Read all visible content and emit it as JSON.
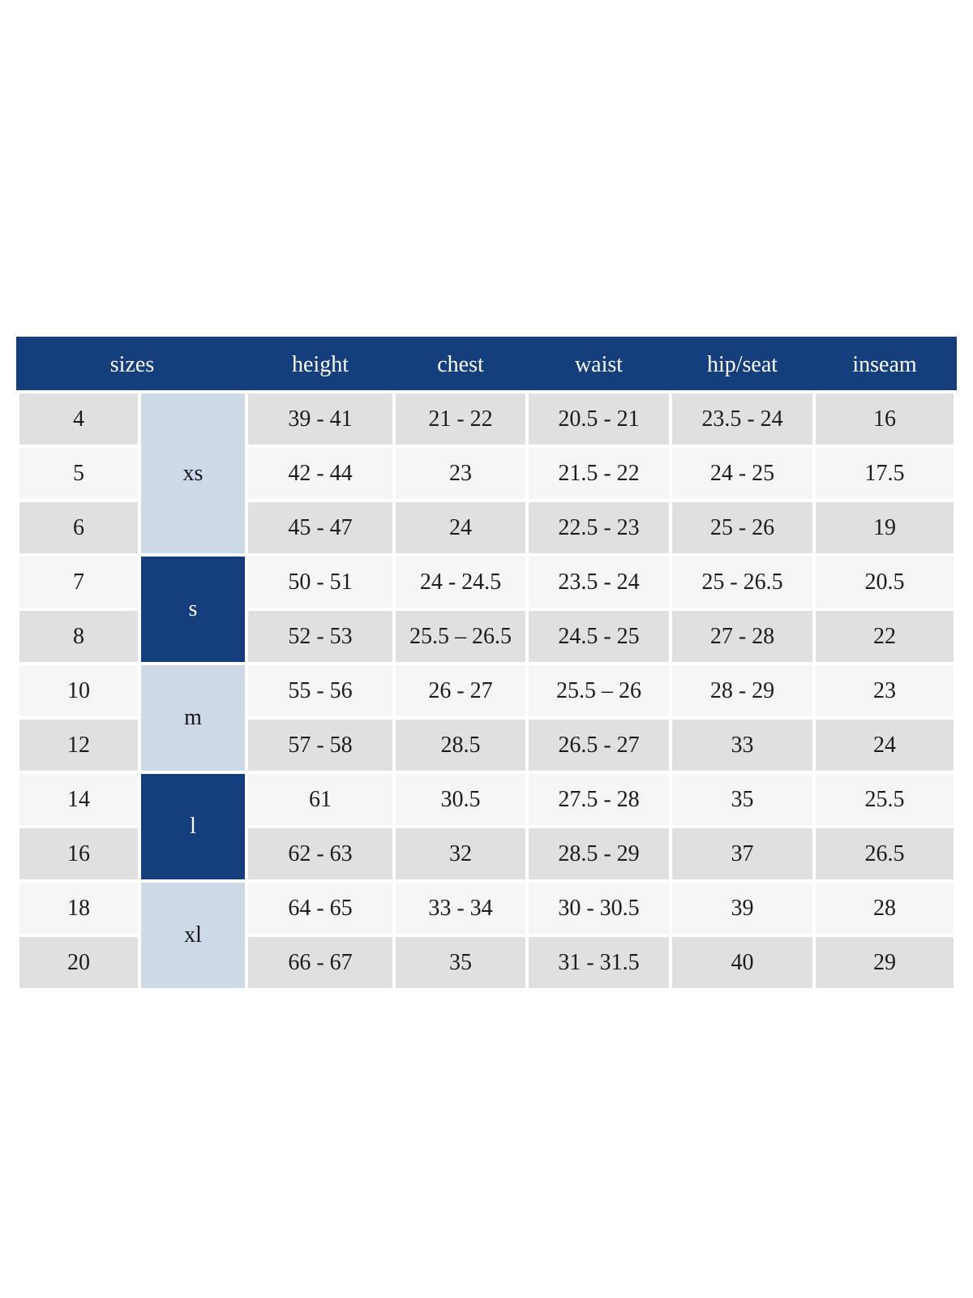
{
  "colors": {
    "header_navy": "#143f7c",
    "group_light_blue": "#cdd9e7",
    "row_gray": "#e0e0e0",
    "row_light": "#f5f5f5",
    "header_text": "#fdfdfd",
    "body_text": "#1c1c1c"
  },
  "chart_data": {
    "type": "table",
    "columns": [
      "sizes",
      "height",
      "chest",
      "waist",
      "hip/seat",
      "inseam"
    ],
    "groups": [
      {
        "label": "xs",
        "tone": "light",
        "rows": [
          [
            "4",
            "39 - 41",
            "21 - 22",
            "20.5 - 21",
            "23.5 - 24",
            "16"
          ],
          [
            "5",
            "42 - 44",
            "23",
            "21.5 - 22",
            "24 - 25",
            "17.5"
          ],
          [
            "6",
            "45 - 47",
            "24",
            "22.5 - 23",
            "25 - 26",
            "19"
          ]
        ]
      },
      {
        "label": "s",
        "tone": "dark",
        "rows": [
          [
            "7",
            "50 - 51",
            "24 - 24.5",
            "23.5 - 24",
            "25 - 26.5",
            "20.5"
          ],
          [
            "8",
            "52 - 53",
            "25.5 – 26.5",
            "24.5 - 25",
            "27 - 28",
            "22"
          ]
        ]
      },
      {
        "label": "m",
        "tone": "light",
        "rows": [
          [
            "10",
            "55 - 56",
            "26 - 27",
            "25.5 – 26",
            "28 - 29",
            "23"
          ],
          [
            "12",
            "57 - 58",
            "28.5",
            "26.5 - 27",
            "33",
            "24"
          ]
        ]
      },
      {
        "label": "l",
        "tone": "dark",
        "rows": [
          [
            "14",
            "61",
            "30.5",
            "27.5 - 28",
            "35",
            "25.5"
          ],
          [
            "16",
            "62 - 63",
            "32",
            "28.5 - 29",
            "37",
            "26.5"
          ]
        ]
      },
      {
        "label": "xl",
        "tone": "light",
        "rows": [
          [
            "18",
            "64 - 65",
            "33 - 34",
            "30 - 30.5",
            "39",
            "28"
          ],
          [
            "20",
            "66 - 67",
            "35",
            "31 - 31.5",
            "40",
            "29"
          ]
        ]
      }
    ]
  }
}
